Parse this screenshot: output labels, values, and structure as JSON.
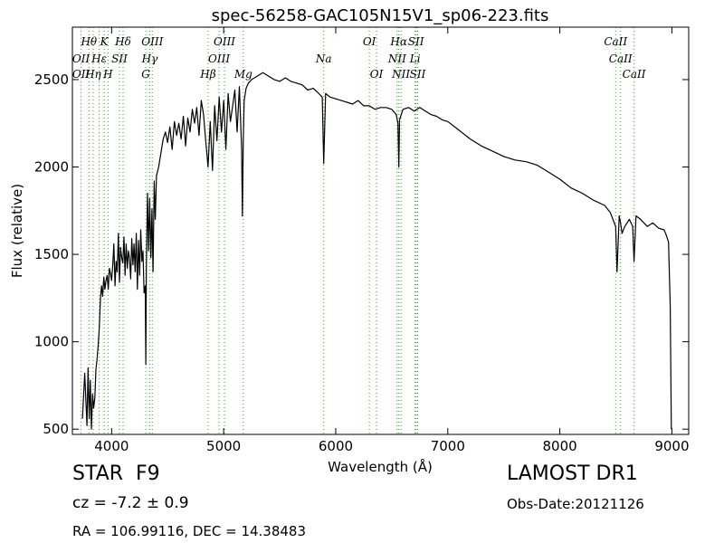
{
  "chart_data": {
    "type": "line",
    "title": "spec-56258-GAC105N15V1_sp06-223.fits",
    "xlabel": "Wavelength (Å)",
    "ylabel": "Flux (relative)",
    "xlim": [
      3650,
      9150
    ],
    "ylim": [
      470,
      2800
    ],
    "x_ticks": [
      4000,
      5000,
      6000,
      7000,
      8000,
      9000
    ],
    "y_ticks": [
      500,
      1000,
      1500,
      2000,
      2500
    ],
    "grid": false,
    "series": [
      {
        "color": "#000000",
        "x": [
          3740,
          3760,
          3780,
          3790,
          3800,
          3810,
          3820,
          3830,
          3840,
          3850,
          3860,
          3870,
          3880,
          3890,
          3900,
          3910,
          3920,
          3930,
          3940,
          3950,
          3960,
          3970,
          3980,
          3990,
          4000,
          4010,
          4020,
          4030,
          4040,
          4050,
          4060,
          4070,
          4080,
          4090,
          4100,
          4110,
          4120,
          4130,
          4140,
          4150,
          4160,
          4170,
          4180,
          4190,
          4200,
          4210,
          4220,
          4230,
          4240,
          4250,
          4260,
          4270,
          4280,
          4290,
          4300,
          4305,
          4310,
          4320,
          4330,
          4340,
          4350,
          4360,
          4370,
          4380,
          4390,
          4400,
          4420,
          4440,
          4460,
          4480,
          4500,
          4520,
          4540,
          4560,
          4580,
          4600,
          4620,
          4640,
          4660,
          4680,
          4700,
          4720,
          4740,
          4760,
          4780,
          4800,
          4820,
          4840,
          4861,
          4880,
          4900,
          4920,
          4940,
          4960,
          4980,
          5000,
          5020,
          5040,
          5060,
          5080,
          5100,
          5120,
          5140,
          5160,
          5167,
          5175,
          5183,
          5200,
          5220,
          5250,
          5300,
          5350,
          5400,
          5450,
          5500,
          5550,
          5600,
          5650,
          5700,
          5750,
          5800,
          5850,
          5880,
          5893,
          5910,
          5950,
          6000,
          6050,
          6100,
          6150,
          6200,
          6250,
          6300,
          6350,
          6400,
          6450,
          6500,
          6540,
          6555,
          6563,
          6570,
          6600,
          6650,
          6700,
          6750,
          6800,
          6850,
          6900,
          6950,
          7000,
          7100,
          7200,
          7300,
          7400,
          7500,
          7600,
          7700,
          7800,
          7900,
          8000,
          8100,
          8200,
          8300,
          8400,
          8450,
          8480,
          8498,
          8510,
          8530,
          8542,
          8555,
          8580,
          8620,
          8650,
          8662,
          8680,
          8720,
          8780,
          8830,
          8880,
          8930,
          8950,
          8970,
          8985,
          8995
        ],
        "values": [
          560,
          820,
          520,
          850,
          560,
          780,
          500,
          700,
          620,
          680,
          840,
          900,
          980,
          1080,
          1250,
          1320,
          1260,
          1370,
          1300,
          1350,
          1380,
          1300,
          1420,
          1390,
          1350,
          1440,
          1560,
          1320,
          1460,
          1400,
          1620,
          1340,
          1540,
          1480,
          1450,
          1600,
          1380,
          1560,
          1420,
          1520,
          1480,
          1360,
          1590,
          1440,
          1560,
          1400,
          1620,
          1300,
          1580,
          1380,
          1640,
          1460,
          1520,
          1280,
          1320,
          870,
          1420,
          1850,
          1520,
          1820,
          1480,
          1760,
          1400,
          1920,
          1700,
          1950,
          2000,
          2080,
          2160,
          2200,
          2140,
          2230,
          2100,
          2260,
          2180,
          2250,
          2160,
          2290,
          2120,
          2280,
          2200,
          2330,
          2250,
          2340,
          2180,
          2380,
          2300,
          2150,
          2000,
          2260,
          1980,
          2350,
          2150,
          2400,
          2200,
          2380,
          2100,
          2420,
          2260,
          2350,
          2440,
          2200,
          2460,
          2100,
          1720,
          2150,
          2380,
          2450,
          2480,
          2500,
          2520,
          2540,
          2520,
          2500,
          2490,
          2510,
          2490,
          2480,
          2470,
          2440,
          2450,
          2420,
          2400,
          2020,
          2420,
          2400,
          2390,
          2380,
          2370,
          2360,
          2380,
          2350,
          2350,
          2330,
          2340,
          2340,
          2330,
          2300,
          2250,
          2000,
          2270,
          2330,
          2340,
          2320,
          2340,
          2320,
          2300,
          2290,
          2270,
          2260,
          2210,
          2160,
          2120,
          2090,
          2060,
          2040,
          2030,
          2010,
          1970,
          1930,
          1880,
          1850,
          1810,
          1780,
          1740,
          1690,
          1660,
          1400,
          1720,
          1680,
          1620,
          1660,
          1700,
          1660,
          1460,
          1720,
          1700,
          1660,
          1680,
          1650,
          1640,
          1610,
          1570,
          1200,
          500
        ]
      }
    ],
    "line_labels": [
      {
        "text": "Hθ",
        "x": 3798,
        "row": 0
      },
      {
        "text": "K",
        "x": 3934,
        "row": 0
      },
      {
        "text": "Hδ",
        "x": 4102,
        "row": 0
      },
      {
        "text": "OIII",
        "x": 4363,
        "row": 0
      },
      {
        "text": "OIII",
        "x": 5007,
        "row": 0
      },
      {
        "text": "OI",
        "x": 6300,
        "row": 0
      },
      {
        "text": "Hα",
        "x": 6563,
        "row": 0
      },
      {
        "text": "SII",
        "x": 6716,
        "row": 0
      },
      {
        "text": "CaII",
        "x": 8498,
        "row": 0
      },
      {
        "text": "OII",
        "x": 3727,
        "row": 1
      },
      {
        "text": "Hε",
        "x": 3889,
        "row": 1
      },
      {
        "text": "SII",
        "x": 4070,
        "row": 1
      },
      {
        "text": "Hγ",
        "x": 4340,
        "row": 1
      },
      {
        "text": "OIII",
        "x": 4959,
        "row": 1
      },
      {
        "text": "Na",
        "x": 5893,
        "row": 1
      },
      {
        "text": "NII",
        "x": 6548,
        "row": 1
      },
      {
        "text": "Li",
        "x": 6708,
        "row": 1
      },
      {
        "text": "CaII",
        "x": 8542,
        "row": 1
      },
      {
        "text": "OII",
        "x": 3727,
        "row": 2
      },
      {
        "text": "Hη",
        "x": 3835,
        "row": 2
      },
      {
        "text": "H",
        "x": 3968,
        "row": 2
      },
      {
        "text": "G",
        "x": 4305,
        "row": 2
      },
      {
        "text": "Hβ",
        "x": 4861,
        "row": 2
      },
      {
        "text": "Mg",
        "x": 5175,
        "row": 2
      },
      {
        "text": "OI",
        "x": 6364,
        "row": 2
      },
      {
        "text": "NII",
        "x": 6583,
        "row": 2
      },
      {
        "text": "SII",
        "x": 6731,
        "row": 2
      },
      {
        "text": "CaII",
        "x": 8662,
        "row": 2
      }
    ],
    "line_marker_color": "#2ca02c"
  },
  "info": {
    "object_class": "STAR",
    "subclass": "F9",
    "redshift": "cz = -7.2  ± 0.9",
    "coordinates": "RA = 106.99116, DEC = 14.38483",
    "survey": "LAMOST DR1",
    "obs_date": "Obs-Date:20121126"
  }
}
